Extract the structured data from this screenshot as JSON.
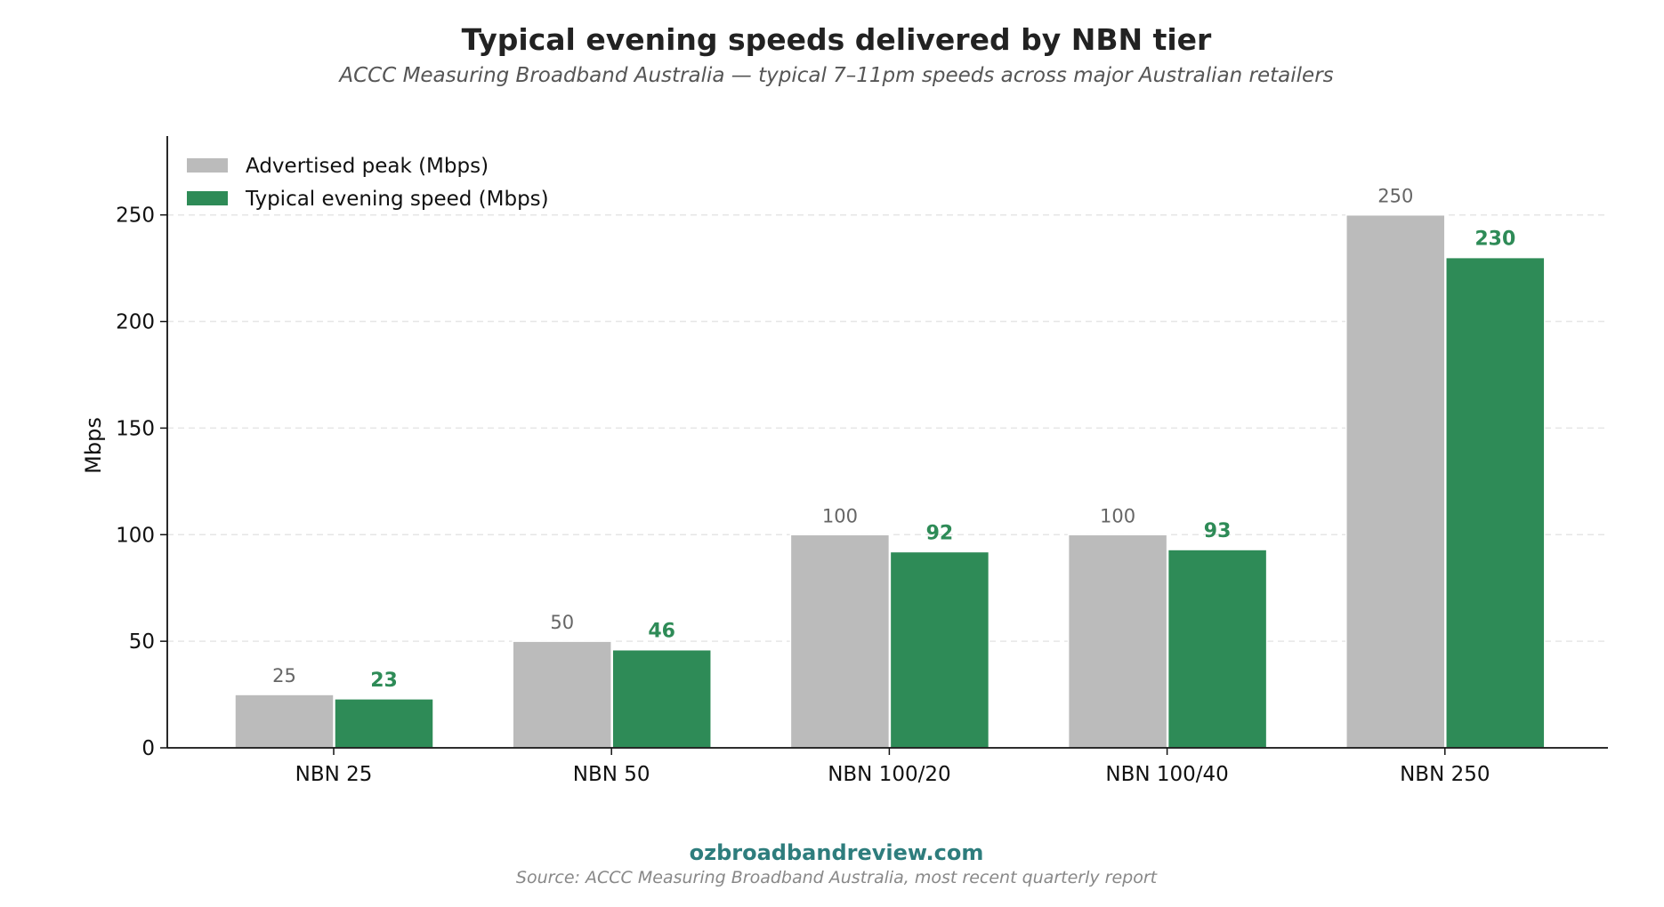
{
  "chart_data": {
    "type": "bar",
    "title": "Typical evening speeds delivered by NBN tier",
    "subtitle": "ACCC Measuring Broadband Australia — typical 7–11pm speeds across major Australian retailers",
    "xlabel": "",
    "ylabel": "Mbps",
    "ylim": [
      0,
      287
    ],
    "yticks": [
      0,
      50,
      100,
      150,
      200,
      250
    ],
    "grid": true,
    "legend_position": "top-left",
    "categories": [
      "NBN 25",
      "NBN 50",
      "NBN 100/20",
      "NBN 100/40",
      "NBN 250"
    ],
    "series": [
      {
        "name": "Advertised peak (Mbps)",
        "values": [
          25,
          50,
          100,
          100,
          250
        ],
        "color": "#bbbbbb"
      },
      {
        "name": "Typical evening speed (Mbps)",
        "values": [
          23,
          46,
          92,
          93,
          230
        ],
        "color": "#2e8b57"
      }
    ]
  },
  "footer": {
    "site": "ozbroadbandreview.com",
    "site_color": "#2e7d7d",
    "source": "Source: ACCC Measuring Broadband Australia, most recent quarterly report"
  }
}
